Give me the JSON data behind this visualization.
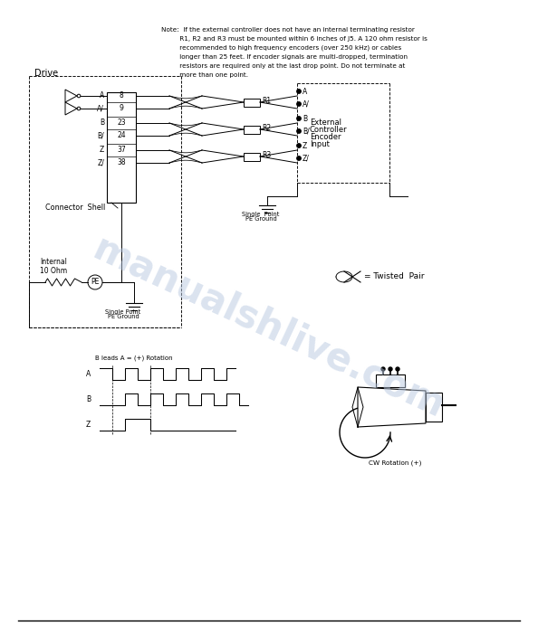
{
  "bg_color": "#ffffff",
  "watermark_color": "#b8c8e0",
  "note_lines": [
    "Note:  If the external controller does not have an internal terminating resistor",
    "         R1, R2 and R3 must be mounted within 6 inches of J5. A 120 ohm resistor is",
    "         recommended to high frequency encoders (over 250 kHz) or cables",
    "         longer than 25 feet. If encoder signals are multi-dropped, termination",
    "         resistors are required only at the last drop point. Do not terminate at",
    "         more than one point."
  ],
  "pins": [
    [
      "A",
      "8"
    ],
    [
      "A/",
      "9"
    ],
    [
      "B",
      "23"
    ],
    [
      "B/",
      "24"
    ],
    [
      "Z",
      "37"
    ],
    [
      "Z/",
      "38"
    ]
  ],
  "ext_labels": [
    "A",
    "A/",
    "B",
    "B/",
    "Z",
    "Z/"
  ],
  "resistor_labels": [
    "R1",
    "R2",
    "R3"
  ]
}
